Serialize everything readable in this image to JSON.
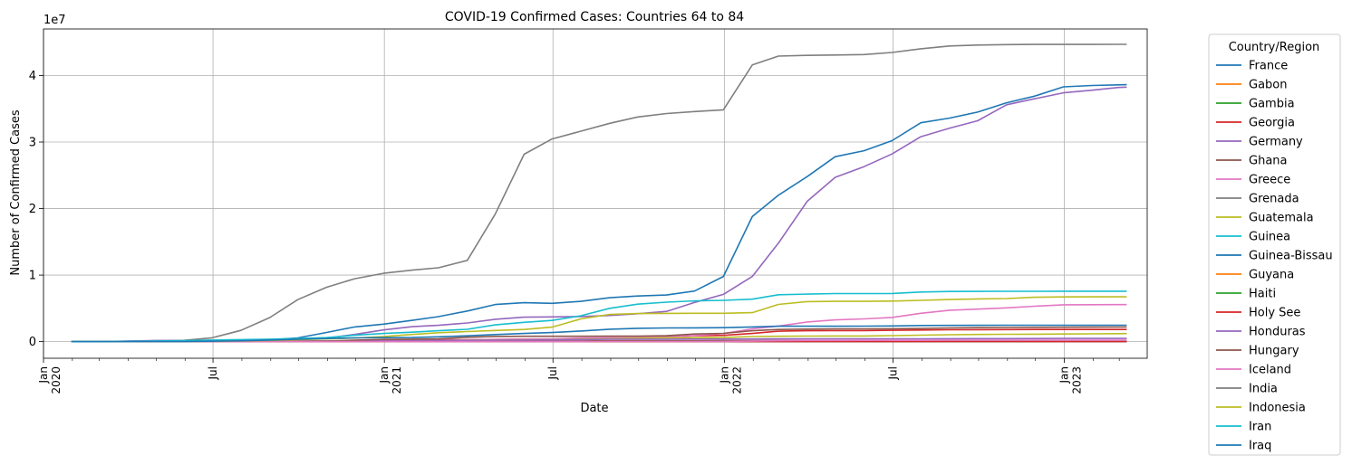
{
  "chart_data": {
    "type": "line",
    "title": "COVID-19 Confirmed Cases: Countries 64 to 84",
    "xlabel": "Date",
    "ylabel": "Number of Confirmed Cases",
    "y_offset_label": "1e7",
    "legend_title": "Country/Region",
    "legend_position": "outside-right",
    "grid": true,
    "xlim": [
      "2020-01-01",
      "2023-03-31"
    ],
    "ylim": [
      -2500000,
      47000000
    ],
    "x": [
      "2020-01-31",
      "2020-02-29",
      "2020-03-31",
      "2020-04-30",
      "2020-05-31",
      "2020-06-30",
      "2020-07-31",
      "2020-08-31",
      "2020-09-30",
      "2020-10-31",
      "2020-11-30",
      "2020-12-31",
      "2021-01-31",
      "2021-02-28",
      "2021-03-31",
      "2021-04-30",
      "2021-05-31",
      "2021-06-30",
      "2021-07-31",
      "2021-08-31",
      "2021-09-30",
      "2021-10-31",
      "2021-11-30",
      "2021-12-31",
      "2022-01-31",
      "2022-02-28",
      "2022-03-31",
      "2022-04-30",
      "2022-05-31",
      "2022-06-30",
      "2022-07-31",
      "2022-08-31",
      "2022-09-30",
      "2022-10-31",
      "2022-11-30",
      "2022-12-31",
      "2023-01-31",
      "2023-02-28",
      "2023-03-09"
    ],
    "x_ticks_major": [
      {
        "date": "2020-01-01",
        "label": "Jan",
        "sublabel": "2020"
      },
      {
        "date": "2020-07-01",
        "label": "Jul",
        "sublabel": ""
      },
      {
        "date": "2021-01-01",
        "label": "Jan",
        "sublabel": "2021"
      },
      {
        "date": "2021-07-01",
        "label": "Jul",
        "sublabel": ""
      },
      {
        "date": "2022-01-01",
        "label": "Jan",
        "sublabel": "2022"
      },
      {
        "date": "2022-07-01",
        "label": "Jul",
        "sublabel": ""
      },
      {
        "date": "2023-01-01",
        "label": "Jan",
        "sublabel": "2023"
      }
    ],
    "y_ticks": [
      {
        "value": 0,
        "label": "0"
      },
      {
        "value": 10000000,
        "label": "1"
      },
      {
        "value": 20000000,
        "label": "2"
      },
      {
        "value": 30000000,
        "label": "3"
      },
      {
        "value": 40000000,
        "label": "4"
      }
    ],
    "series": [
      {
        "name": "France",
        "color": "#1f77b4",
        "values": [
          6,
          100,
          52000,
          130000,
          150000,
          165000,
          190000,
          280000,
          560000,
          1370000,
          2200000,
          2620000,
          3200000,
          3750000,
          4600000,
          5580000,
          5850000,
          5750000,
          6050000,
          6600000,
          6850000,
          7000000,
          7600000,
          9800000,
          18800000,
          22000000,
          24800000,
          27800000,
          28700000,
          30200000,
          32900000,
          33600000,
          34500000,
          35900000,
          36900000,
          38300000,
          38500000,
          38600000,
          38620000
        ]
      },
      {
        "name": "Gabon",
        "color": "#ff7f0e",
        "values": [
          0,
          0,
          16,
          200,
          2400,
          5200,
          7000,
          8500,
          8800,
          9000,
          9200,
          9500,
          11000,
          16000,
          21000,
          23000,
          24000,
          25000,
          25500,
          29000,
          33000,
          35000,
          37000,
          38000,
          46000,
          47000,
          47500,
          47800,
          47900,
          48000,
          48200,
          48400,
          48500,
          48600,
          48700,
          48800,
          48900,
          48950,
          48980
        ]
      },
      {
        "name": "Gambia",
        "color": "#2ca02c",
        "values": [
          0,
          0,
          4,
          10,
          25,
          50,
          500,
          2700,
          3500,
          3700,
          3750,
          3800,
          4000,
          4700,
          5400,
          5800,
          5900,
          6000,
          7500,
          9700,
          9900,
          9950,
          10000,
          10100,
          11500,
          11900,
          12000,
          12000,
          12100,
          12200,
          12300,
          12400,
          12500,
          12550,
          12600,
          12600,
          12620,
          12625,
          12626
        ]
      },
      {
        "name": "Georgia",
        "color": "#d62728",
        "values": [
          0,
          0,
          110,
          550,
          750,
          900,
          1100,
          1300,
          3700,
          20000,
          101000,
          227000,
          258000,
          272000,
          280000,
          300000,
          340000,
          355000,
          410000,
          510000,
          600000,
          720000,
          870000,
          940000,
          1220000,
          1570000,
          1640000,
          1650000,
          1660000,
          1700000,
          1740000,
          1790000,
          1800000,
          1810000,
          1820000,
          1820000,
          1820000,
          1830000,
          1830000
        ]
      },
      {
        "name": "Germany",
        "color": "#9467bd",
        "values": [
          7,
          80,
          72000,
          165000,
          182000,
          195000,
          210000,
          245000,
          295000,
          530000,
          1070000,
          1760000,
          2240000,
          2450000,
          2810000,
          3360000,
          3680000,
          3710000,
          3770000,
          3930000,
          4190000,
          4540000,
          5890000,
          7100000,
          9800000,
          14800000,
          21100000,
          24700000,
          26300000,
          28200000,
          30800000,
          32100000,
          33200000,
          35600000,
          36500000,
          37400000,
          37800000,
          38200000,
          38250000
        ]
      },
      {
        "name": "Ghana",
        "color": "#8c564b",
        "values": [
          0,
          0,
          160,
          2100,
          8000,
          17700,
          35500,
          44000,
          46300,
          48000,
          51000,
          54800,
          64000,
          83000,
          90000,
          93000,
          94000,
          96000,
          104000,
          121000,
          127000,
          130000,
          131000,
          144000,
          158000,
          161000,
          161000,
          161000,
          162000,
          166000,
          168000,
          169000,
          170000,
          170500,
          171000,
          171500,
          171600,
          171650,
          171700
        ]
      },
      {
        "name": "Greece",
        "color": "#e377c2",
        "values": [
          0,
          7,
          1300,
          2600,
          2900,
          3400,
          4500,
          10000,
          19000,
          41000,
          110000,
          135000,
          155000,
          190000,
          260000,
          340000,
          400000,
          420000,
          530000,
          590000,
          640000,
          690000,
          900000,
          1210000,
          1920000,
          2340000,
          2950000,
          3270000,
          3410000,
          3630000,
          4260000,
          4720000,
          4890000,
          5080000,
          5320000,
          5540000,
          5550000,
          5560000,
          5560000
        ]
      },
      {
        "name": "Grenada",
        "color": "#7f7f7f",
        "values": [
          0,
          0,
          9,
          20,
          23,
          23,
          24,
          24,
          30,
          30,
          40,
          120,
          150,
          155,
          160,
          160,
          160,
          160,
          180,
          3800,
          5800,
          5900,
          6000,
          6200,
          14000,
          14400,
          14500,
          14600,
          14700,
          16000,
          18000,
          19000,
          19500,
          19600,
          19680,
          19680,
          19690,
          19690,
          19693
        ]
      },
      {
        "name": "Guatemala",
        "color": "#bcbd22",
        "values": [
          0,
          0,
          40,
          600,
          5000,
          20000,
          55000,
          77000,
          93000,
          108000,
          122000,
          138000,
          160000,
          177000,
          200000,
          230000,
          260000,
          290000,
          340000,
          410000,
          520000,
          570000,
          590000,
          620000,
          760000,
          800000,
          830000,
          840000,
          850000,
          900000,
          970000,
          1030000,
          1070000,
          1100000,
          1120000,
          1150000,
          1170000,
          1200000,
          1210000
        ]
      },
      {
        "name": "Guinea",
        "color": "#17becf",
        "values": [
          0,
          0,
          7,
          1500,
          3800,
          5400,
          7000,
          9500,
          10500,
          12300,
          13000,
          13800,
          14500,
          16000,
          19000,
          22000,
          23000,
          24000,
          25000,
          29000,
          30000,
          30500,
          30800,
          31000,
          36000,
          36400,
          36500,
          36600,
          36700,
          37000,
          37400,
          37700,
          38000,
          38100,
          38200,
          38200,
          38250,
          38270,
          38300
        ]
      },
      {
        "name": "Guinea-Bissau",
        "color": "#1f77b4",
        "values": [
          0,
          0,
          8,
          1000,
          1300,
          1700,
          1900,
          2200,
          2300,
          2400,
          2400,
          2500,
          2700,
          3200,
          3500,
          3700,
          3800,
          3900,
          5000,
          6000,
          6100,
          6200,
          6300,
          6400,
          7600,
          7900,
          8100,
          8200,
          8300,
          8400,
          8600,
          8700,
          8800,
          8900,
          8900,
          9000,
          9000,
          9600,
          9600
        ]
      },
      {
        "name": "Guyana",
        "color": "#ff7f0e",
        "values": [
          0,
          0,
          19,
          80,
          150,
          240,
          440,
          960,
          3000,
          4100,
          5400,
          6400,
          7600,
          8800,
          10500,
          12000,
          16000,
          19500,
          22000,
          25000,
          32000,
          36000,
          37500,
          38200,
          62000,
          63000,
          63000,
          63400,
          64000,
          64500,
          66000,
          68000,
          70000,
          70500,
          71000,
          71500,
          72000,
          72500,
          73000
        ]
      },
      {
        "name": "Haiti",
        "color": "#2ca02c",
        "values": [
          0,
          0,
          15,
          76,
          2000,
          5800,
          7400,
          8400,
          8800,
          9100,
          9300,
          10000,
          11800,
          12300,
          12700,
          13000,
          14500,
          18000,
          20000,
          21000,
          22000,
          23500,
          24500,
          25500,
          29000,
          30300,
          30600,
          30700,
          30800,
          31000,
          31500,
          32600,
          33100,
          33500,
          33700,
          33800,
          33900,
          34000,
          34000
        ]
      },
      {
        "name": "Holy See",
        "color": "#d62728",
        "values": [
          0,
          0,
          6,
          9,
          12,
          12,
          12,
          12,
          12,
          20,
          26,
          27,
          27,
          27,
          27,
          27,
          27,
          27,
          27,
          27,
          27,
          27,
          27,
          29,
          29,
          29,
          29,
          29,
          29,
          29,
          29,
          29,
          29,
          29,
          29,
          29,
          29,
          29,
          29
        ]
      },
      {
        "name": "Honduras",
        "color": "#9467bd",
        "values": [
          0,
          0,
          140,
          800,
          5000,
          19000,
          40000,
          57000,
          75000,
          95000,
          110000,
          124000,
          150000,
          175000,
          190000,
          210000,
          230000,
          255000,
          300000,
          355000,
          370000,
          375000,
          378000,
          380000,
          400000,
          415000,
          420000,
          422000,
          423000,
          425000,
          430000,
          440000,
          450000,
          455000,
          465000,
          472000,
          473000,
          475000,
          475000
        ]
      },
      {
        "name": "Hungary",
        "color": "#8c564b",
        "values": [
          0,
          0,
          525,
          2900,
          3900,
          4100,
          4400,
          5600,
          28000,
          82000,
          205000,
          322000,
          365000,
          429000,
          654000,
          781000,
          806000,
          808000,
          810000,
          820000,
          830000,
          880000,
          1150000,
          1240000,
          1630000,
          1830000,
          1880000,
          1900000,
          1920000,
          1930000,
          1980000,
          2060000,
          2100000,
          2130000,
          2150000,
          2170000,
          2180000,
          2190000,
          2190000
        ]
      },
      {
        "name": "Iceland",
        "color": "#e377c2",
        "values": [
          0,
          1,
          1100,
          1800,
          1800,
          1850,
          1900,
          2100,
          3200,
          4900,
          5300,
          5700,
          6000,
          6100,
          6300,
          6500,
          6600,
          6700,
          8000,
          10900,
          11700,
          13000,
          16000,
          26000,
          64000,
          138000,
          179000,
          185000,
          187000,
          191000,
          199000,
          203000,
          205000,
          206000,
          207000,
          208000,
          208000,
          208000,
          209000
        ]
      },
      {
        "name": "India",
        "color": "#7f7f7f",
        "values": [
          1,
          3,
          1400,
          34000,
          190000,
          580000,
          1690000,
          3620000,
          6310000,
          8180000,
          9460000,
          10270000,
          10750000,
          11100000,
          12220000,
          19160000,
          28170000,
          30460000,
          31640000,
          32810000,
          33770000,
          34290000,
          34580000,
          34840000,
          41590000,
          42920000,
          43030000,
          43080000,
          43150000,
          43460000,
          44020000,
          44440000,
          44580000,
          44650000,
          44670000,
          44680000,
          44680000,
          44690000,
          44690000
        ]
      },
      {
        "name": "Indonesia",
        "color": "#bcbd22",
        "values": [
          0,
          2,
          1500,
          10100,
          26400,
          56400,
          108000,
          174000,
          287000,
          410000,
          538000,
          744000,
          1080000,
          1330000,
          1510000,
          1670000,
          1820000,
          2180000,
          3410000,
          4090000,
          4220000,
          4240000,
          4260000,
          4260000,
          4350000,
          5590000,
          6010000,
          6050000,
          6050000,
          6090000,
          6200000,
          6330000,
          6420000,
          6480000,
          6660000,
          6720000,
          6730000,
          6730000,
          6740000
        ]
      },
      {
        "name": "Iran",
        "color": "#17becf",
        "values": [
          0,
          600,
          44600,
          94000,
          151000,
          227000,
          301000,
          376000,
          461000,
          603000,
          949000,
          1230000,
          1420000,
          1630000,
          1850000,
          2520000,
          2900000,
          3180000,
          3890000,
          5000000,
          5630000,
          5930000,
          6120000,
          6200000,
          6380000,
          7050000,
          7140000,
          7220000,
          7230000,
          7240000,
          7450000,
          7540000,
          7550000,
          7560000,
          7560000,
          7570000,
          7570000,
          7570000,
          7572000
        ]
      },
      {
        "name": "Iraq",
        "color": "#1f77b4",
        "values": [
          0,
          8,
          690,
          2100,
          6400,
          50000,
          130000,
          230000,
          360000,
          470000,
          560000,
          600000,
          620000,
          720000,
          870000,
          1060000,
          1220000,
          1360000,
          1600000,
          1870000,
          2000000,
          2050000,
          2070000,
          2090000,
          2200000,
          2310000,
          2320000,
          2320000,
          2330000,
          2350000,
          2420000,
          2440000,
          2450000,
          2460000,
          2460000,
          2465000,
          2465000,
          2466000,
          2466000
        ]
      }
    ]
  }
}
